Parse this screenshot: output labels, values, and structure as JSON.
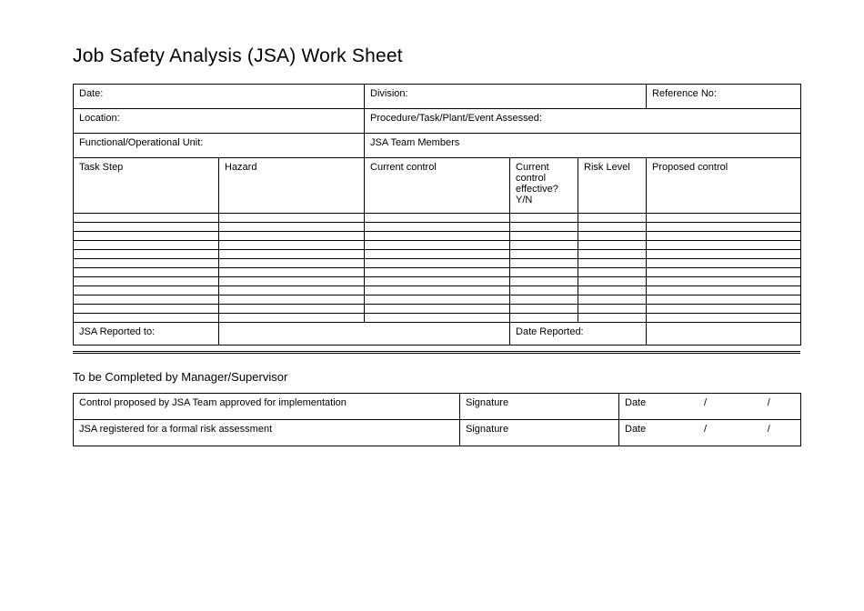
{
  "title": "Job Safety Analysis (JSA) Work Sheet",
  "header": {
    "date": "Date:",
    "division": "Division:",
    "reference_no": "Reference No:",
    "location": "Location:",
    "procedure": "Procedure/Task/Plant/Event Assessed:",
    "functional_unit": "Functional/Operational Unit:",
    "team_members": "JSA Team Members"
  },
  "columns": {
    "task_step": "Task Step",
    "hazard": "Hazard",
    "current_control": "Current control",
    "effective": "Current control effective? Y/N",
    "risk_level": "Risk Level",
    "proposed_control": "Proposed control"
  },
  "footer": {
    "reported_to": "JSA Reported to:",
    "date_reported": "Date Reported:"
  },
  "section2": {
    "title": "To be Completed by Manager/Supervisor",
    "row1": "Control proposed by JSA Team approved for implementation",
    "row2": "JSA registered for a formal risk assessment",
    "signature": "Signature",
    "date": "Date",
    "slash": "/"
  },
  "layout": {
    "col_widths_main": [
      160,
      160,
      160,
      75,
      75,
      170
    ],
    "data_row_count": 12,
    "border_color": "#000000",
    "background_color": "#ffffff",
    "text_color": "#000000",
    "font": "Segoe UI",
    "title_fontsize": 21,
    "body_fontsize": 11
  }
}
